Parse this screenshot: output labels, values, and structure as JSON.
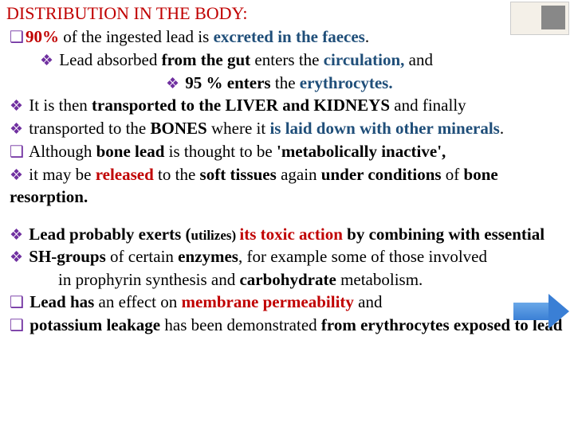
{
  "title": "DISTRIBUTION IN THE BODY:",
  "l1a": "90% ",
  "l1b": "of the ingested lead is ",
  "l1c": "excreted in the faeces",
  "l1d": ".",
  "l2a": "Lead absorbed ",
  "l2b": "from the gut ",
  "l2c": "enters the ",
  "l2d": "circulation,",
  "l2e": " and",
  "l3a": "95 % enters ",
  "l3b": "the ",
  "l3c": "erythrocytes.",
  "l4a": "It is then ",
  "l4b": "transported to the LIVER and KIDNEYS ",
  "l4c": "and finally",
  "l5a": " transported to the ",
  "l5b": "BONES ",
  "l5c": "where it ",
  "l5d": "is laid down with other minerals",
  "l5e": ".",
  "l6a": "Although ",
  "l6b": "bone lead",
  "l6c": " is thought to be ",
  "l6d": "'metabolically inactive',",
  "l7a": " it may be ",
  "l7b": "released ",
  "l7c": "to the ",
  "l7d": "soft tissues ",
  "l7e": "again ",
  "l7f": "under conditions ",
  "l7g": "of ",
  "l7h": "bone resorption.",
  "l8a": "Lead probably exerts (",
  "l8b": "utilizes) ",
  "l8c": "its toxic action ",
  "l8d": "by combining with essential",
  "l9a": "SH-groups ",
  "l9b": "of certain ",
  "l9c": "enzymes",
  "l9d": ", for example some of those involved",
  "l10a": "in prophyrin synthesis and ",
  "l10b": "carbohydrate ",
  "l10c": "metabolism.",
  "l11a": "Lead has ",
  "l11b": "an effect on ",
  "l11c": "membrane permeability ",
  "l11d": "and",
  "l12a": "potassium leakage ",
  "l12b": "has been demonstrated ",
  "l12c": "from erythrocytes exposed to lead",
  "bullets": {
    "square": "❑",
    "diamond": "❖"
  },
  "colors": {
    "red": "#c00000",
    "purple": "#7030a0",
    "blue": "#1f4e79"
  }
}
